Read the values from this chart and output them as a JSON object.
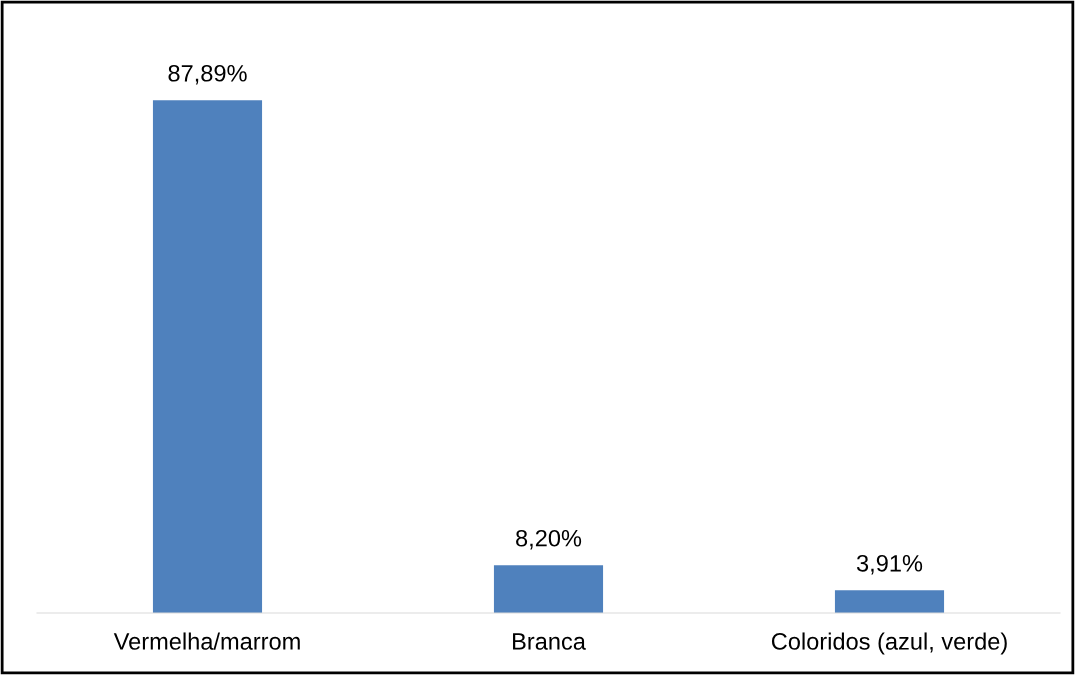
{
  "chart_data": {
    "type": "bar",
    "categories": [
      "Vermelha/marrom",
      "Branca",
      "Coloridos (azul, verde)"
    ],
    "values": [
      87.89,
      8.2,
      3.91
    ],
    "value_labels": [
      "87,89%",
      "8,20%",
      "3,91%"
    ],
    "color": "#4f81bd",
    "grid": false,
    "legend": false
  }
}
